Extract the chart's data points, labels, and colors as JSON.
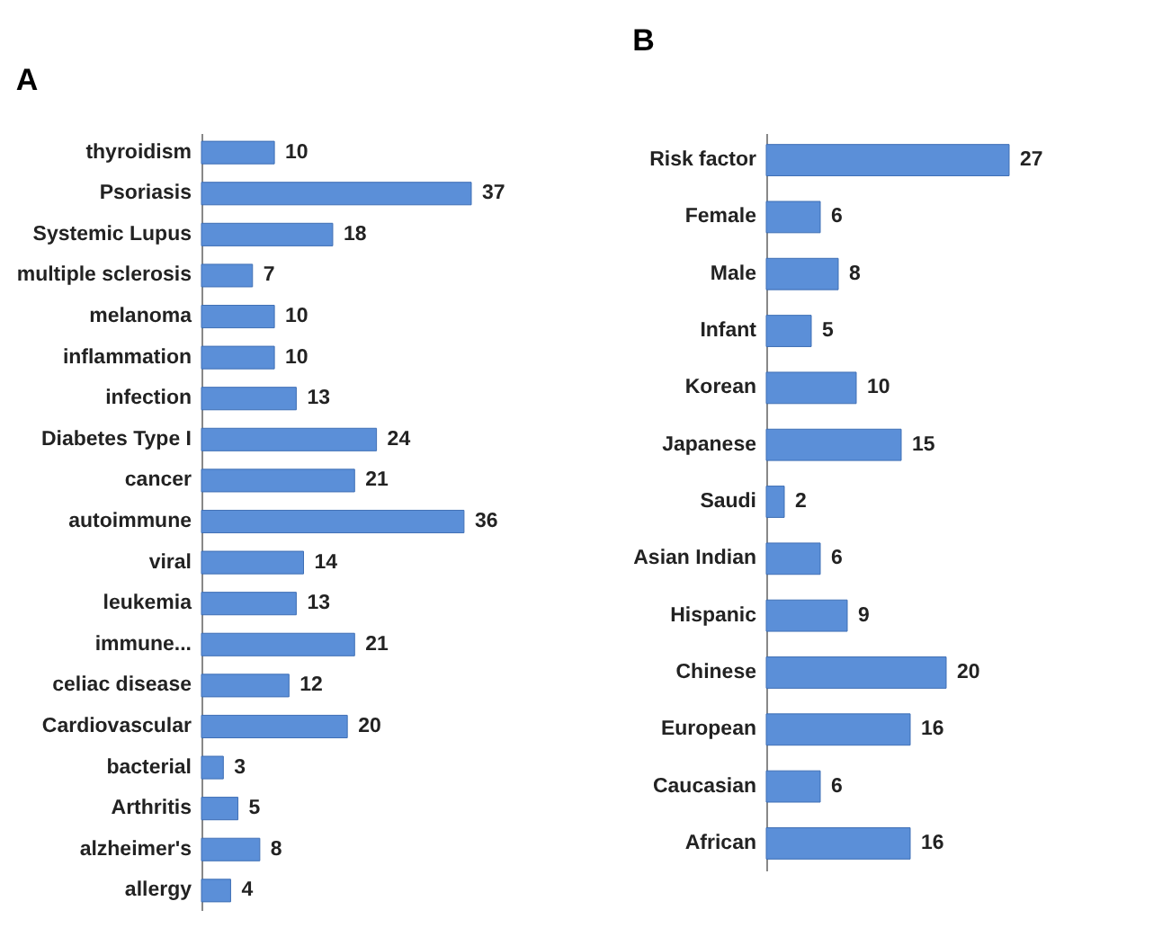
{
  "chart_data": [
    {
      "type": "bar",
      "title": "A",
      "orientation": "horizontal",
      "data_labels": true,
      "tick_labels": "y",
      "categories": [
        "thyroidism",
        "Psoriasis",
        "Systemic Lupus",
        "multiple sclerosis",
        "melanoma",
        "inflammation",
        "infection",
        "Diabetes Type I",
        "cancer",
        "autoimmune",
        "viral",
        "leukemia",
        "immune...",
        "celiac disease",
        "Cardiovascular",
        "bacterial",
        "Arthritis",
        "alzheimer's",
        "allergy"
      ],
      "series": [
        {
          "color": "#5b8fd8",
          "values": [
            10,
            37,
            18,
            7,
            10,
            10,
            13,
            24,
            21,
            36,
            14,
            13,
            21,
            12,
            20,
            3,
            5,
            8,
            4
          ]
        }
      ]
    },
    {
      "type": "bar",
      "title": "B",
      "orientation": "horizontal",
      "data_labels": true,
      "tick_labels": "y",
      "categories": [
        "Risk factor",
        "Female",
        "Male",
        "Infant",
        "Korean",
        "Japanese",
        "Saudi",
        "Asian Indian",
        "Hispanic",
        "Chinese",
        "European",
        "Caucasian",
        "African"
      ],
      "series": [
        {
          "color": "#5b8fd8",
          "values": [
            27,
            6,
            8,
            5,
            10,
            15,
            2,
            6,
            9,
            20,
            16,
            6,
            16
          ]
        }
      ]
    }
  ]
}
